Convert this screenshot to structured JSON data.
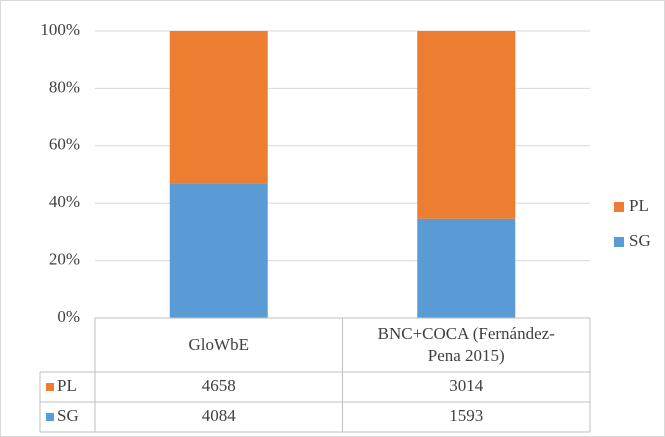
{
  "chart_data": {
    "type": "bar",
    "stacking": "percent",
    "categories": [
      "GloWbE",
      "BNC+COCA (Fernández-Pena 2015)"
    ],
    "series": [
      {
        "name": "PL",
        "color": "#ed7d31",
        "values": [
          4658,
          3014
        ]
      },
      {
        "name": "SG",
        "color": "#5b9bd5",
        "values": [
          4084,
          1593
        ]
      }
    ],
    "ylim": [
      0,
      100
    ],
    "yticks": [
      {
        "value": 0,
        "label": "0%"
      },
      {
        "value": 20,
        "label": "20%"
      },
      {
        "value": 40,
        "label": "40%"
      },
      {
        "value": 60,
        "label": "60%"
      },
      {
        "value": 80,
        "label": "80%"
      },
      {
        "value": 100,
        "label": "100%"
      }
    ],
    "grid": true,
    "legend": "right",
    "data_table": true
  }
}
